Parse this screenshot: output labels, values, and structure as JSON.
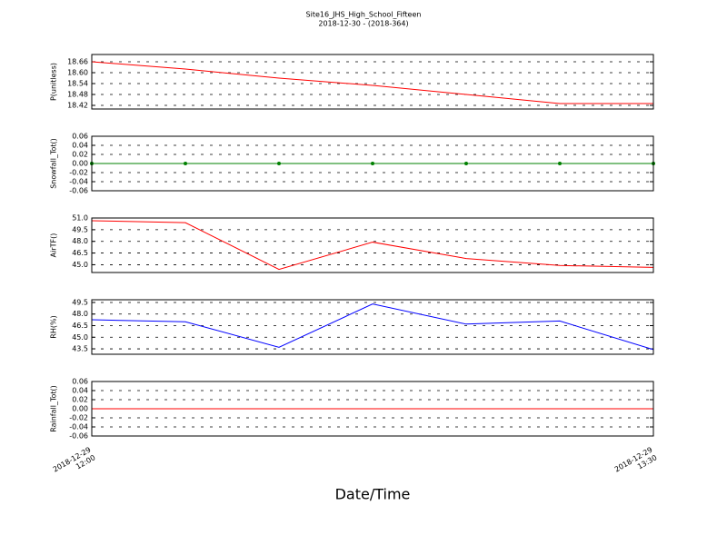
{
  "title": "Site16_JHS_High_School_Fifteen",
  "subtitle": "2018-12-30 - (2018-364)",
  "xlabel": "Date/Time",
  "chart_data": [
    {
      "type": "line",
      "ylabel": "P(unitless)",
      "x": [
        "2018-12-29 12:00",
        "2018-12-29 12:15",
        "2018-12-29 12:30",
        "2018-12-29 12:45",
        "2018-12-29 13:00",
        "2018-12-29 13:15",
        "2018-12-29 13:30"
      ],
      "xlim": [
        "2018-12-29 12:00",
        "2018-12-29 13:30"
      ],
      "ylim": [
        18.4,
        18.7
      ],
      "yticks": [
        {
          "value": 18.42,
          "label": "18.42"
        },
        18.48,
        18.54,
        {
          "value": 18.6,
          "label": "18.60"
        },
        18.66
      ],
      "grid": true,
      "series": [
        {
          "color": "#ff0000",
          "marker": false,
          "values": [
            18.66,
            18.62,
            18.57,
            18.53,
            18.48,
            18.43,
            18.43
          ]
        }
      ]
    },
    {
      "type": "line",
      "ylabel": "Snowfall_Tot()",
      "x": [
        "2018-12-29 12:00",
        "2018-12-29 12:15",
        "2018-12-29 12:30",
        "2018-12-29 12:45",
        "2018-12-29 13:00",
        "2018-12-29 13:15",
        "2018-12-29 13:30"
      ],
      "xlim": [
        "2018-12-29 12:00",
        "2018-12-29 13:30"
      ],
      "ylim": [
        -0.06,
        0.06
      ],
      "yticks": [
        -0.06,
        -0.04,
        -0.02,
        {
          "value": 0,
          "label": "0.00"
        },
        0.02,
        0.04,
        0.06
      ],
      "grid": true,
      "series": [
        {
          "color": "#008000",
          "marker": true,
          "values": [
            0,
            0,
            0,
            0,
            0,
            0,
            0
          ]
        }
      ]
    },
    {
      "type": "line",
      "ylabel": "AirTF()",
      "x": [
        "2018-12-29 12:00",
        "2018-12-29 12:15",
        "2018-12-29 12:30",
        "2018-12-29 12:45",
        "2018-12-29 13:00",
        "2018-12-29 13:15",
        "2018-12-29 13:30"
      ],
      "xlim": [
        "2018-12-29 12:00",
        "2018-12-29 13:30"
      ],
      "ylim": [
        44.0,
        51.0
      ],
      "yticks": [
        {
          "value": 45,
          "label": "45.0"
        },
        46.5,
        {
          "value": 48,
          "label": "48.0"
        },
        49.5,
        {
          "value": 51,
          "label": "51.0"
        }
      ],
      "grid": true,
      "series": [
        {
          "color": "#ff0000",
          "marker": false,
          "values": [
            50.65,
            50.4,
            44.4,
            47.9,
            45.8,
            44.9,
            44.65
          ]
        }
      ]
    },
    {
      "type": "line",
      "ylabel": "RH(%)",
      "x": [
        "2018-12-29 12:00",
        "2018-12-29 12:15",
        "2018-12-29 12:30",
        "2018-12-29 12:45",
        "2018-12-29 13:00",
        "2018-12-29 13:15",
        "2018-12-29 13:30"
      ],
      "xlim": [
        "2018-12-29 12:00",
        "2018-12-29 13:30"
      ],
      "ylim": [
        42.8,
        49.85
      ],
      "yticks": [
        43.5,
        {
          "value": 45,
          "label": "45.0"
        },
        46.5,
        {
          "value": 48,
          "label": "48.0"
        },
        49.5
      ],
      "grid": true,
      "series": [
        {
          "color": "#0000ff",
          "marker": false,
          "values": [
            47.26,
            47.0,
            43.7,
            49.3,
            46.7,
            47.1,
            43.4
          ]
        }
      ]
    },
    {
      "type": "line",
      "ylabel": "Rainfall_Tot()",
      "x": [
        "2018-12-29 12:00",
        "2018-12-29 12:15",
        "2018-12-29 12:30",
        "2018-12-29 12:45",
        "2018-12-29 13:00",
        "2018-12-29 13:15",
        "2018-12-29 13:30"
      ],
      "xlim": [
        "2018-12-29 12:00",
        "2018-12-29 13:30"
      ],
      "xticks": [
        {
          "value": "2018-12-29 12:00",
          "label": "2018-12-29\n12:00"
        },
        {
          "value": "2018-12-29 13:30",
          "label": "2018-12-29\n13:30"
        }
      ],
      "ylim": [
        -0.06,
        0.06
      ],
      "yticks": [
        -0.06,
        -0.04,
        -0.02,
        {
          "value": 0,
          "label": "0.00"
        },
        0.02,
        0.04,
        0.06
      ],
      "grid": true,
      "series": [
        {
          "color": "#ff0000",
          "marker": false,
          "values": [
            0,
            0,
            0,
            0,
            0,
            0,
            0
          ]
        }
      ]
    }
  ]
}
